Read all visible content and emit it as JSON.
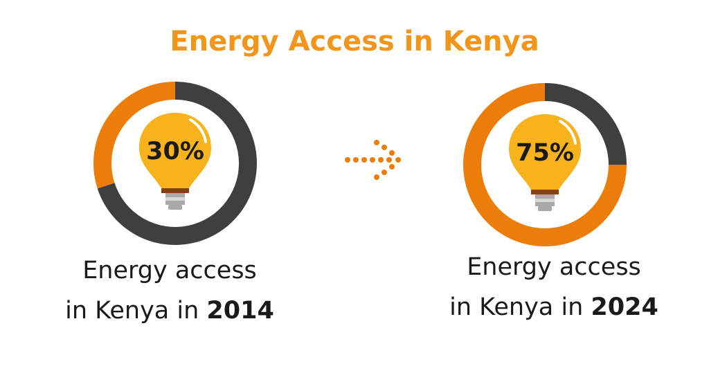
{
  "title": "Energy Access in Kenya",
  "colors": {
    "accent": "#ed7d0a",
    "remainder": "#3f3f3f",
    "title": "#f2961b",
    "bulb": "#f7b21c",
    "text": "#1a1a1a"
  },
  "icons": [
    "lightbulb-icon",
    "dotted-arrow-right-icon"
  ],
  "chart_data": [
    {
      "type": "pie",
      "style": "donut",
      "label": "30%",
      "value": 30,
      "max": 100,
      "caption_line1": "Energy access",
      "caption_line2": "in Kenya in ",
      "year": "2014"
    },
    {
      "type": "pie",
      "style": "donut",
      "label": "75%",
      "value": 75,
      "max": 100,
      "caption_line1": "Energy access",
      "caption_line2": "in Kenya in ",
      "year": "2024"
    }
  ]
}
